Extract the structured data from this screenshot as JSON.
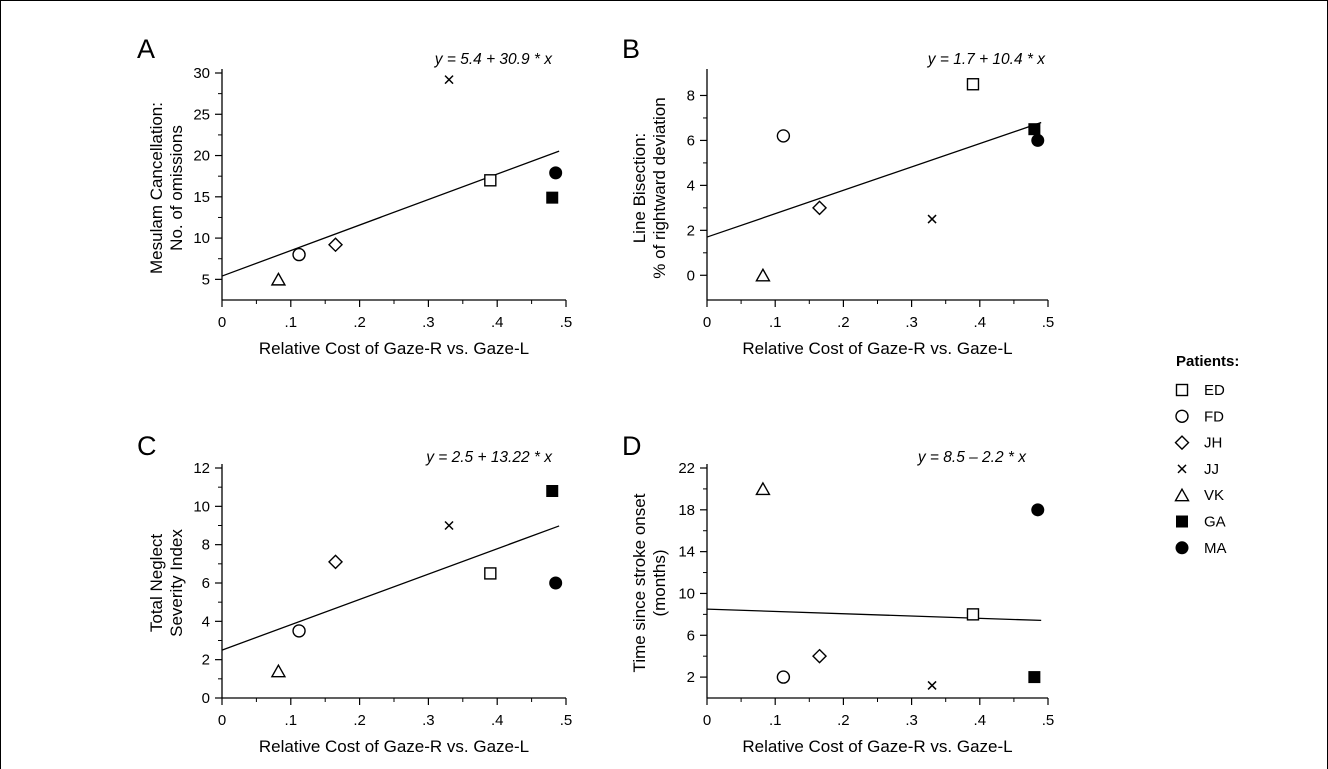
{
  "figure": {
    "x_axis_label": "Relative Cost of Gaze-R vs. Gaze-L",
    "x_ticks": [
      "0",
      ".1",
      ".2",
      ".3",
      ".4",
      ".5"
    ]
  },
  "legend": {
    "title": "Patients:",
    "entries": [
      {
        "label": "ED",
        "marker": "open-square"
      },
      {
        "label": "FD",
        "marker": "open-circle"
      },
      {
        "label": "JH",
        "marker": "open-diamond"
      },
      {
        "label": "JJ",
        "marker": "cross"
      },
      {
        "label": "VK",
        "marker": "open-triangle"
      },
      {
        "label": "GA",
        "marker": "filled-square"
      },
      {
        "label": "MA",
        "marker": "filled-circle"
      }
    ]
  },
  "chart_data": [
    {
      "type": "scatter",
      "panel": "A",
      "equation": "y = 5.4 + 30.9 * x",
      "ylabel": [
        "Mesulam Cancellation:",
        "No. of omissions"
      ],
      "xlabel": "Relative Cost of Gaze-R vs. Gaze-L",
      "xlim": [
        0,
        0.5
      ],
      "ylim": [
        2.5,
        30
      ],
      "yticks": [
        5,
        10,
        15,
        20,
        25,
        30
      ],
      "ytick_labels": [
        "5",
        "10",
        "15",
        "20",
        "25",
        "30"
      ],
      "regression": {
        "intercept": 5.4,
        "slope": 30.9,
        "x_range": [
          0,
          0.49
        ]
      },
      "points": [
        {
          "patient": "ED",
          "x": 0.39,
          "y": 17
        },
        {
          "patient": "FD",
          "x": 0.112,
          "y": 8
        },
        {
          "patient": "JH",
          "x": 0.165,
          "y": 9.2
        },
        {
          "patient": "JJ",
          "x": 0.33,
          "y": 29.2
        },
        {
          "patient": "VK",
          "x": 0.082,
          "y": 5
        },
        {
          "patient": "GA",
          "x": 0.48,
          "y": 14.9
        },
        {
          "patient": "MA",
          "x": 0.485,
          "y": 17.9
        }
      ]
    },
    {
      "type": "scatter",
      "panel": "B",
      "equation": "y = 1.7 + 10.4 * x",
      "ylabel": [
        "Line Bisection:",
        "% of rightward deviation"
      ],
      "xlabel": "Relative Cost of Gaze-R vs. Gaze-L",
      "xlim": [
        0,
        0.5
      ],
      "ylim": [
        -1.1,
        9
      ],
      "yticks": [
        0,
        2,
        4,
        6,
        8
      ],
      "ytick_labels": [
        "0",
        "2",
        "4",
        "6",
        "8"
      ],
      "regression": {
        "intercept": 1.7,
        "slope": 10.4,
        "x_range": [
          0,
          0.49
        ]
      },
      "points": [
        {
          "patient": "ED",
          "x": 0.39,
          "y": 8.5
        },
        {
          "patient": "FD",
          "x": 0.112,
          "y": 6.2
        },
        {
          "patient": "JH",
          "x": 0.165,
          "y": 3
        },
        {
          "patient": "JJ",
          "x": 0.33,
          "y": 2.5
        },
        {
          "patient": "VK",
          "x": 0.082,
          "y": 0
        },
        {
          "patient": "GA",
          "x": 0.48,
          "y": 6.5
        },
        {
          "patient": "MA",
          "x": 0.485,
          "y": 6
        }
      ]
    },
    {
      "type": "scatter",
      "panel": "C",
      "equation": "y = 2.5 + 13.22 *  x",
      "ylabel": [
        "Total Neglect",
        "Severity Index"
      ],
      "xlabel": "Relative Cost of Gaze-R vs. Gaze-L",
      "xlim": [
        0,
        0.5
      ],
      "ylim": [
        0,
        12
      ],
      "yticks": [
        0,
        2,
        4,
        6,
        8,
        10,
        12
      ],
      "ytick_labels": [
        "0",
        "2",
        "4",
        "6",
        "8",
        "10",
        "12"
      ],
      "regression": {
        "intercept": 2.5,
        "slope": 13.22,
        "x_range": [
          0,
          0.49
        ]
      },
      "points": [
        {
          "patient": "ED",
          "x": 0.39,
          "y": 6.5
        },
        {
          "patient": "FD",
          "x": 0.112,
          "y": 3.5
        },
        {
          "patient": "JH",
          "x": 0.165,
          "y": 7.1
        },
        {
          "patient": "JJ",
          "x": 0.33,
          "y": 9
        },
        {
          "patient": "VK",
          "x": 0.082,
          "y": 1.4
        },
        {
          "patient": "GA",
          "x": 0.48,
          "y": 10.8
        },
        {
          "patient": "MA",
          "x": 0.485,
          "y": 6
        }
      ]
    },
    {
      "type": "scatter",
      "panel": "D",
      "equation": "y = 8.5 – 2.2 * x",
      "ylabel": [
        "Time since stroke onset",
        "(months)"
      ],
      "xlabel": "Relative Cost of Gaze-R vs. Gaze-L",
      "xlim": [
        0,
        0.5
      ],
      "ylim": [
        0,
        22
      ],
      "yticks": [
        2,
        6,
        10,
        14,
        18,
        22
      ],
      "ytick_labels": [
        "2",
        "6",
        "10",
        "14",
        "18",
        "22"
      ],
      "regression": {
        "intercept": 8.5,
        "slope": -2.2,
        "x_range": [
          0,
          0.49
        ]
      },
      "points": [
        {
          "patient": "ED",
          "x": 0.39,
          "y": 8
        },
        {
          "patient": "FD",
          "x": 0.112,
          "y": 2
        },
        {
          "patient": "JH",
          "x": 0.165,
          "y": 4
        },
        {
          "patient": "JJ",
          "x": 0.33,
          "y": 1.2
        },
        {
          "patient": "VK",
          "x": 0.082,
          "y": 20
        },
        {
          "patient": "GA",
          "x": 0.48,
          "y": 2
        },
        {
          "patient": "MA",
          "x": 0.485,
          "y": 18
        }
      ]
    }
  ]
}
